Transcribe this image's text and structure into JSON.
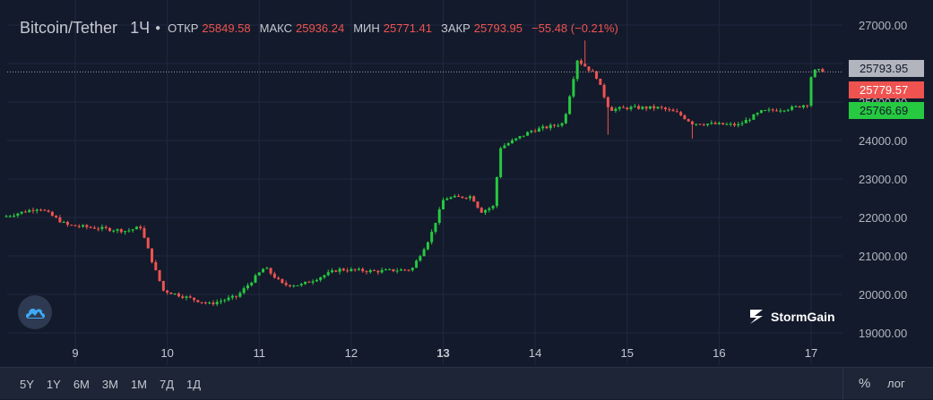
{
  "legend": {
    "symbol": "Bitcoin/Tether",
    "timeframe": "1Ч",
    "open_label": "ОТКР",
    "open": "25849.58",
    "high_label": "МАКС",
    "high": "25936.24",
    "low_label": "МИН",
    "low": "25771.41",
    "close_label": "ЗАКР",
    "close": "25793.95",
    "change": "−55.48 (−0.21%)"
  },
  "price_tags": {
    "last": "25793.95",
    "high": "25779.57",
    "low": "25766.69"
  },
  "footer": {
    "ranges": [
      "5Y",
      "1Y",
      "6M",
      "3M",
      "1M",
      "7Д",
      "1Д"
    ],
    "percent_label": "%",
    "log_label": "лог"
  },
  "brand": {
    "name": "StormGain"
  },
  "icons": {
    "left_logo": "cloud-logo-icon",
    "brand_logo": "stormgain-logo-icon"
  },
  "colors": {
    "background": "#131a2b",
    "up": "#26c940",
    "down": "#ef5350",
    "grid": "#1f2840",
    "last_line": "#9e9e9e"
  },
  "chart_data": {
    "type": "candlestick",
    "y_axis": {
      "ticks": [
        "19000.00",
        "20000.00",
        "21000.00",
        "22000.00",
        "23000.00",
        "24000.00",
        "25000.00",
        "26000.00",
        "27000.00"
      ],
      "range": [
        18900,
        27250
      ]
    },
    "x_axis": {
      "ticks": [
        "9",
        "10",
        "11",
        "12",
        "13",
        "14",
        "15",
        "16",
        "17"
      ],
      "bold_tick": "13"
    },
    "last_price": 25793.95,
    "waypoints": [
      [
        8.25,
        22010
      ],
      [
        8.65,
        22250
      ],
      [
        8.95,
        21800
      ],
      [
        9.6,
        21650
      ],
      [
        9.75,
        21750
      ],
      [
        9.9,
        20700
      ],
      [
        10.0,
        20100
      ],
      [
        10.5,
        19750
      ],
      [
        10.8,
        19950
      ],
      [
        11.1,
        20700
      ],
      [
        11.3,
        20250
      ],
      [
        11.5,
        20250
      ],
      [
        11.9,
        20650
      ],
      [
        12.3,
        20600
      ],
      [
        12.7,
        20650
      ],
      [
        12.9,
        21500
      ],
      [
        13.05,
        22500
      ],
      [
        13.35,
        22550
      ],
      [
        13.45,
        22150
      ],
      [
        13.6,
        22300
      ],
      [
        13.65,
        23800
      ],
      [
        14.0,
        24250
      ],
      [
        14.35,
        24450
      ],
      [
        14.5,
        26100
      ],
      [
        14.7,
        25700
      ],
      [
        14.85,
        24800
      ],
      [
        15.05,
        24850
      ],
      [
        15.4,
        24850
      ],
      [
        15.6,
        24700
      ],
      [
        15.75,
        24450
      ],
      [
        16.25,
        24400
      ],
      [
        16.5,
        24750
      ],
      [
        16.85,
        24850
      ],
      [
        17.0,
        24950
      ],
      [
        17.05,
        25800
      ],
      [
        17.15,
        25820
      ]
    ],
    "spikes": [
      [
        14.55,
        26600
      ],
      [
        14.8,
        24150
      ],
      [
        15.7,
        24050
      ]
    ]
  }
}
